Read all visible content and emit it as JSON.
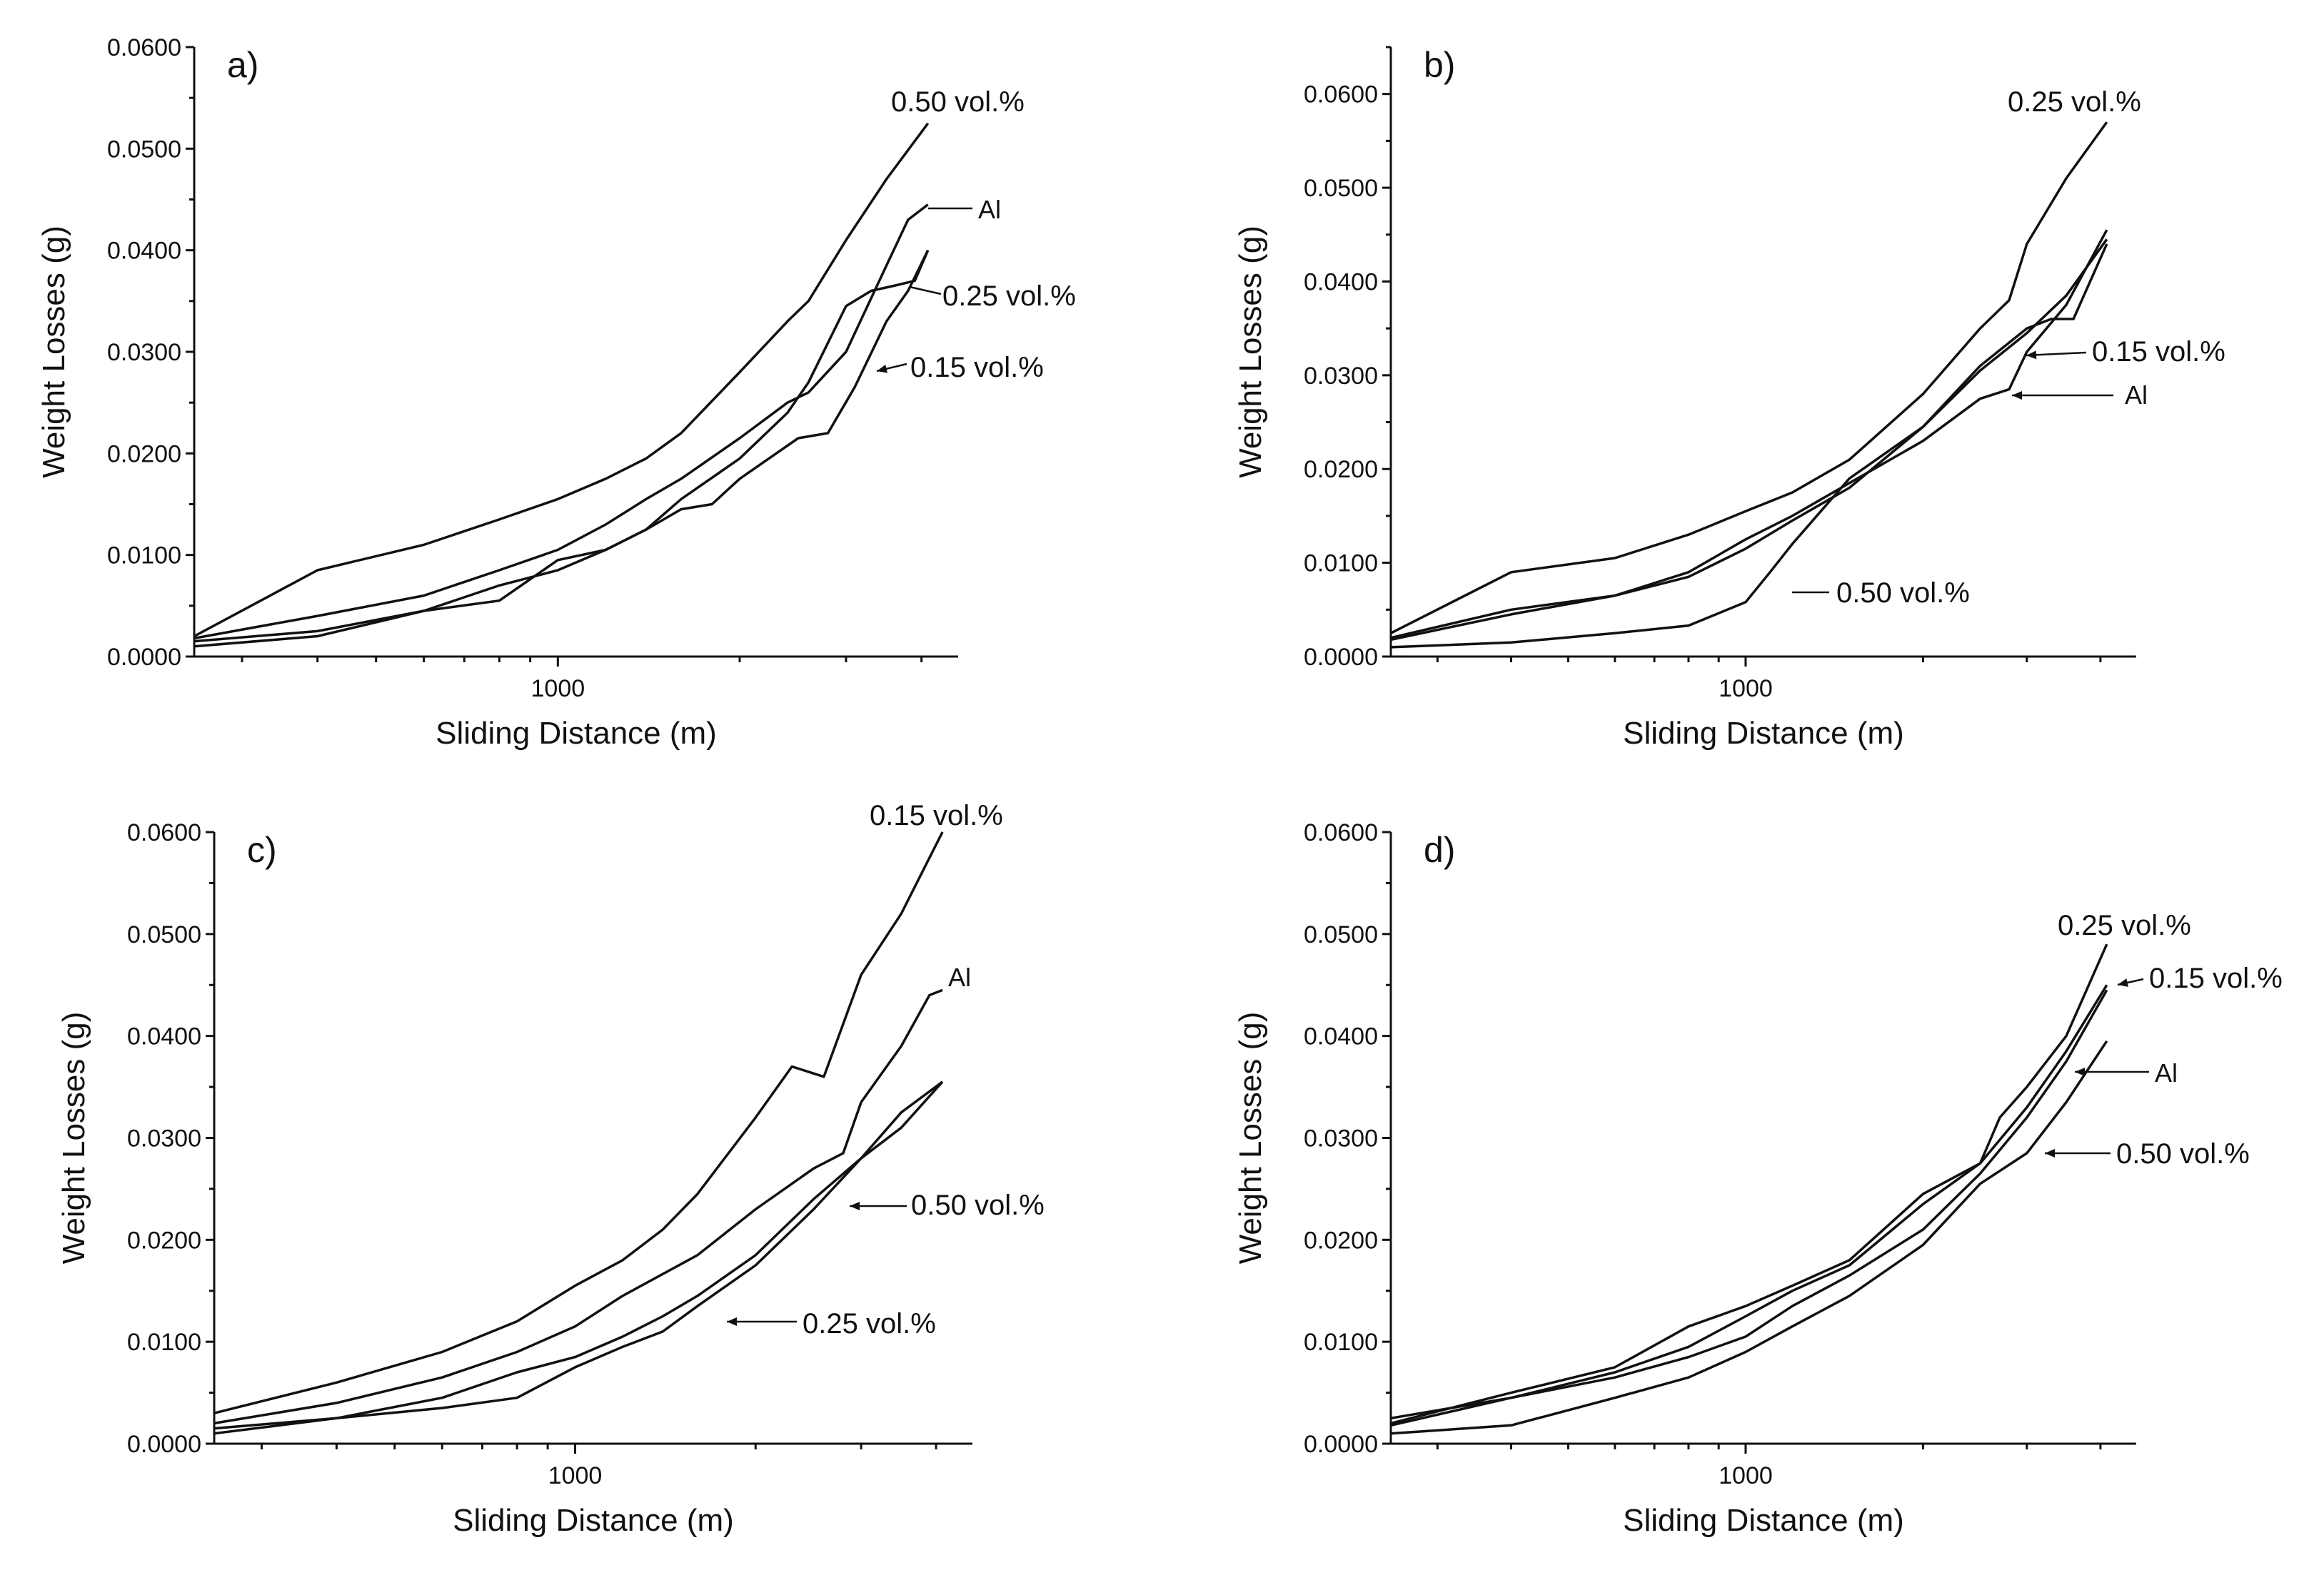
{
  "chart_data": [
    {
      "panel": "a)",
      "type": "line",
      "xlabel": "Sliding Distance (m)",
      "ylabel": "Weight Losses (g)",
      "xlim": [
        250,
        4600
      ],
      "ylim": [
        0,
        0.06
      ],
      "x_ticks": [
        {
          "value": 1000,
          "label": "1000"
        }
      ],
      "y_ticks": [
        {
          "value": 0,
          "label": "0.0000"
        },
        {
          "value": 0.01,
          "label": "0.0100"
        },
        {
          "value": 0.02,
          "label": "0.0200"
        },
        {
          "value": 0.03,
          "label": "0.0300"
        },
        {
          "value": 0.04,
          "label": "0.0400"
        },
        {
          "value": 0.05,
          "label": "0.0500"
        },
        {
          "value": 0.06,
          "label": "0.0600"
        }
      ],
      "series": [
        {
          "name": "0.50 vol.%",
          "x": [
            250,
            400,
            600,
            800,
            1000,
            1200,
            1400,
            1600,
            2000,
            2400,
            2600,
            3000,
            3500,
            4100
          ],
          "y": [
            0.002,
            0.0085,
            0.011,
            0.0135,
            0.0155,
            0.0175,
            0.0195,
            0.022,
            0.028,
            0.033,
            0.035,
            0.041,
            0.047,
            0.0525
          ]
        },
        {
          "name": "Al",
          "x": [
            250,
            400,
            600,
            800,
            1000,
            1200,
            1400,
            1600,
            2000,
            2400,
            2600,
            3000,
            3500,
            3800,
            4100
          ],
          "y": [
            0.0018,
            0.004,
            0.006,
            0.0085,
            0.0105,
            0.013,
            0.0155,
            0.0175,
            0.0215,
            0.025,
            0.026,
            0.03,
            0.0385,
            0.043,
            0.0445
          ]
        },
        {
          "name": "0.25 vol.%",
          "x": [
            250,
            400,
            600,
            800,
            1000,
            1200,
            1400,
            1600,
            2000,
            2400,
            2600,
            3000,
            3300,
            3600,
            3900,
            4100
          ],
          "y": [
            0.0015,
            0.0025,
            0.0045,
            0.007,
            0.0085,
            0.0105,
            0.0125,
            0.0155,
            0.0195,
            0.024,
            0.027,
            0.0345,
            0.036,
            0.0365,
            0.037,
            0.04
          ]
        },
        {
          "name": "0.15 vol.%",
          "x": [
            250,
            400,
            600,
            800,
            1000,
            1200,
            1400,
            1600,
            1800,
            2000,
            2300,
            2500,
            2800,
            3100,
            3500,
            3800,
            4100
          ],
          "y": [
            0.001,
            0.002,
            0.0045,
            0.0055,
            0.0095,
            0.0105,
            0.0125,
            0.0145,
            0.015,
            0.0175,
            0.02,
            0.0215,
            0.022,
            0.0265,
            0.033,
            0.036,
            0.04
          ]
        }
      ],
      "annotations": [
        {
          "text": "0.50 vol.%",
          "series": "0.50 vol.%"
        },
        {
          "text": "Al",
          "series": "Al"
        },
        {
          "text": "0.25 vol.%",
          "series": "0.25 vol.%"
        },
        {
          "text": "0.15 vol.%",
          "series": "0.15 vol.%"
        }
      ]
    },
    {
      "panel": "b)",
      "type": "line",
      "xlabel": "Sliding Distance (m)",
      "ylabel": "Weight Losses (g)",
      "xlim": [
        250,
        4600
      ],
      "ylim": [
        0,
        0.065
      ],
      "x_ticks": [
        {
          "value": 1000,
          "label": "1000"
        }
      ],
      "y_ticks": [
        {
          "value": 0,
          "label": "0.0000"
        },
        {
          "value": 0.01,
          "label": "0.0100"
        },
        {
          "value": 0.02,
          "label": "0.0200"
        },
        {
          "value": 0.03,
          "label": "0.0300"
        },
        {
          "value": 0.04,
          "label": "0.0400"
        },
        {
          "value": 0.05,
          "label": "0.0500"
        },
        {
          "value": 0.06,
          "label": "0.0600"
        }
      ],
      "series": [
        {
          "name": "0.25 vol.%",
          "x": [
            250,
            400,
            600,
            800,
            1000,
            1200,
            1500,
            2000,
            2500,
            2800,
            3000,
            3500,
            4100
          ],
          "y": [
            0.0025,
            0.009,
            0.0105,
            0.013,
            0.0155,
            0.0175,
            0.021,
            0.028,
            0.035,
            0.038,
            0.044,
            0.051,
            0.057
          ]
        },
        {
          "name": "0.15 vol.%",
          "x": [
            250,
            400,
            600,
            800,
            1000,
            1200,
            1500,
            2000,
            2500,
            3000,
            3300,
            3600,
            4100
          ],
          "y": [
            0.002,
            0.005,
            0.0065,
            0.0085,
            0.0115,
            0.0145,
            0.018,
            0.0245,
            0.031,
            0.035,
            0.036,
            0.036,
            0.044
          ]
        },
        {
          "name": "Al",
          "x": [
            250,
            400,
            600,
            800,
            1000,
            1200,
            1500,
            2000,
            2500,
            2800,
            3000,
            3500,
            4100
          ],
          "y": [
            0.0018,
            0.0045,
            0.0065,
            0.009,
            0.0125,
            0.015,
            0.0185,
            0.023,
            0.0275,
            0.0285,
            0.0325,
            0.0375,
            0.0455
          ]
        },
        {
          "name": "0.50 vol.%",
          "x": [
            250,
            400,
            600,
            800,
            1000,
            1100,
            1200,
            1500,
            2000,
            2500,
            3000,
            3500,
            4100
          ],
          "y": [
            0.001,
            0.0015,
            0.0025,
            0.0033,
            0.0058,
            0.009,
            0.012,
            0.019,
            0.0245,
            0.0305,
            0.0345,
            0.0385,
            0.0445
          ]
        }
      ],
      "annotations": [
        {
          "text": "0.25 vol.%",
          "series": "0.25 vol.%"
        },
        {
          "text": "0.15 vol.%",
          "series": "0.15 vol.%"
        },
        {
          "text": "Al",
          "series": "Al"
        },
        {
          "text": "0.50 vol.%",
          "series": "0.50 vol.%"
        }
      ]
    },
    {
      "panel": "c)",
      "type": "line",
      "xlabel": "Sliding Distance (m)",
      "ylabel": "Weight Losses (g)",
      "xlim": [
        250,
        4600
      ],
      "ylim": [
        0,
        0.06
      ],
      "x_ticks": [
        {
          "value": 1000,
          "label": "1000"
        }
      ],
      "y_ticks": [
        {
          "value": 0,
          "label": "0.0000"
        },
        {
          "value": 0.01,
          "label": "0.0100"
        },
        {
          "value": 0.02,
          "label": "0.0200"
        },
        {
          "value": 0.03,
          "label": "0.0300"
        },
        {
          "value": 0.04,
          "label": "0.0400"
        },
        {
          "value": 0.05,
          "label": "0.0500"
        },
        {
          "value": 0.06,
          "label": "0.0600"
        }
      ],
      "series": [
        {
          "name": "0.15 vol.%",
          "x": [
            250,
            400,
            600,
            800,
            1000,
            1200,
            1400,
            1600,
            2000,
            2300,
            2600,
            3000,
            3500,
            4100
          ],
          "y": [
            0.003,
            0.006,
            0.009,
            0.012,
            0.0155,
            0.018,
            0.021,
            0.0245,
            0.032,
            0.037,
            0.036,
            0.046,
            0.052,
            0.06
          ]
        },
        {
          "name": "Al",
          "x": [
            250,
            400,
            600,
            800,
            1000,
            1200,
            1600,
            2000,
            2500,
            2800,
            3000,
            3500,
            3900,
            4100
          ],
          "y": [
            0.002,
            0.004,
            0.0065,
            0.009,
            0.0115,
            0.0145,
            0.0185,
            0.023,
            0.027,
            0.0285,
            0.0335,
            0.039,
            0.044,
            0.0445
          ]
        },
        {
          "name": "0.50 vol.%",
          "x": [
            250,
            400,
            600,
            800,
            1000,
            1200,
            1400,
            1600,
            2000,
            2500,
            3000,
            3500,
            4100
          ],
          "y": [
            0.0015,
            0.0025,
            0.0045,
            0.007,
            0.0085,
            0.0105,
            0.0125,
            0.0145,
            0.0185,
            0.024,
            0.028,
            0.031,
            0.0355
          ]
        },
        {
          "name": "0.25 vol.%",
          "x": [
            250,
            400,
            600,
            800,
            1000,
            1200,
            1400,
            1600,
            2000,
            2500,
            3000,
            3500,
            4100
          ],
          "y": [
            0.001,
            0.0025,
            0.0035,
            0.0045,
            0.0075,
            0.0095,
            0.011,
            0.0135,
            0.0175,
            0.023,
            0.028,
            0.0325,
            0.0355
          ]
        }
      ],
      "annotations": [
        {
          "text": "0.15 vol.%",
          "series": "0.15 vol.%"
        },
        {
          "text": "Al",
          "series": "Al"
        },
        {
          "text": "0.50 vol.%",
          "series": "0.50 vol.%"
        },
        {
          "text": "0.25 vol.%",
          "series": "0.25 vol.%"
        }
      ]
    },
    {
      "panel": "d)",
      "type": "line",
      "xlabel": "Sliding Distance (m)",
      "ylabel": "Weight Losses (g)",
      "xlim": [
        250,
        4600
      ],
      "ylim": [
        0,
        0.06
      ],
      "x_ticks": [
        {
          "value": 1000,
          "label": "1000"
        }
      ],
      "y_ticks": [
        {
          "value": 0,
          "label": "0.0000"
        },
        {
          "value": 0.01,
          "label": "0.0100"
        },
        {
          "value": 0.02,
          "label": "0.0200"
        },
        {
          "value": 0.03,
          "label": "0.0300"
        },
        {
          "value": 0.04,
          "label": "0.0400"
        },
        {
          "value": 0.05,
          "label": "0.0500"
        },
        {
          "value": 0.06,
          "label": "0.0600"
        }
      ],
      "series": [
        {
          "name": "0.25 vol.%",
          "x": [
            250,
            400,
            600,
            800,
            1000,
            1200,
            1500,
            2000,
            2500,
            2700,
            3000,
            3500,
            4100
          ],
          "y": [
            0.002,
            0.005,
            0.0075,
            0.0115,
            0.0135,
            0.0155,
            0.018,
            0.0245,
            0.0275,
            0.032,
            0.035,
            0.04,
            0.049
          ]
        },
        {
          "name": "0.15 vol.%",
          "x": [
            250,
            400,
            600,
            800,
            1000,
            1200,
            1500,
            2000,
            2500,
            3000,
            3500,
            4100
          ],
          "y": [
            0.0025,
            0.0045,
            0.007,
            0.0095,
            0.0125,
            0.015,
            0.0175,
            0.0235,
            0.0275,
            0.033,
            0.0385,
            0.045
          ]
        },
        {
          "name": "Al",
          "x": [
            250,
            400,
            600,
            800,
            1000,
            1200,
            1500,
            2000,
            2500,
            3000,
            3500,
            4100
          ],
          "y": [
            0.0018,
            0.0045,
            0.0065,
            0.0085,
            0.0105,
            0.0135,
            0.0165,
            0.021,
            0.0265,
            0.032,
            0.0375,
            0.0445
          ]
        },
        {
          "name": "0.50 vol.%",
          "x": [
            250,
            400,
            600,
            800,
            1000,
            1200,
            1500,
            2000,
            2500,
            3000,
            3500,
            4100
          ],
          "y": [
            0.001,
            0.0018,
            0.0045,
            0.0065,
            0.009,
            0.0115,
            0.0145,
            0.0195,
            0.0255,
            0.0285,
            0.0335,
            0.0395
          ]
        }
      ],
      "annotations": [
        {
          "text": "0.25 vol.%",
          "series": "0.25 vol.%"
        },
        {
          "text": "0.15 vol.%",
          "series": "0.15 vol.%"
        },
        {
          "text": "Al",
          "series": "Al"
        },
        {
          "text": "0.50 vol.%",
          "series": "0.50 vol.%"
        }
      ]
    }
  ]
}
